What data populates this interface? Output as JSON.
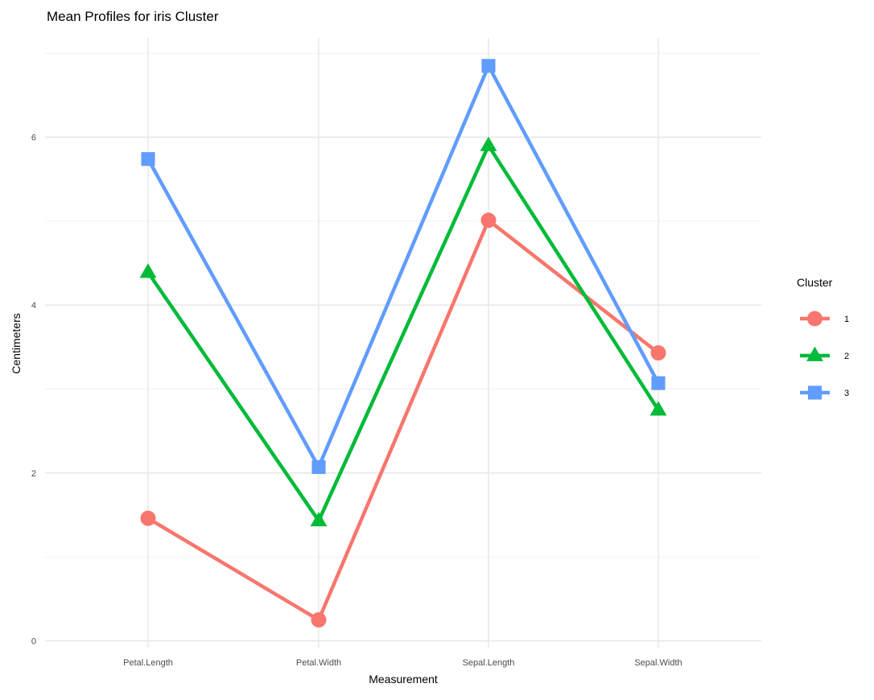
{
  "chart_data": {
    "type": "line",
    "title": "Mean Profiles for iris Cluster",
    "xlabel": "Measurement",
    "ylabel": "Centimeters",
    "categories": [
      "Petal.Length",
      "Petal.Width",
      "Sepal.Length",
      "Sepal.Width"
    ],
    "ylim": [
      -0.15,
      7.0
    ],
    "y_ticks": [
      0,
      2,
      4,
      6
    ],
    "grid": true,
    "legend": {
      "title": "Cluster",
      "position": "right"
    },
    "series": [
      {
        "name": "1",
        "color": "#F8766D",
        "marker": "circle",
        "values": [
          1.46,
          0.25,
          5.01,
          3.43
        ]
      },
      {
        "name": "2",
        "color": "#00BA38",
        "marker": "triangle",
        "values": [
          4.39,
          1.43,
          5.9,
          2.75
        ]
      },
      {
        "name": "3",
        "color": "#619CFF",
        "marker": "square",
        "values": [
          5.74,
          2.07,
          6.85,
          3.07
        ]
      }
    ]
  }
}
